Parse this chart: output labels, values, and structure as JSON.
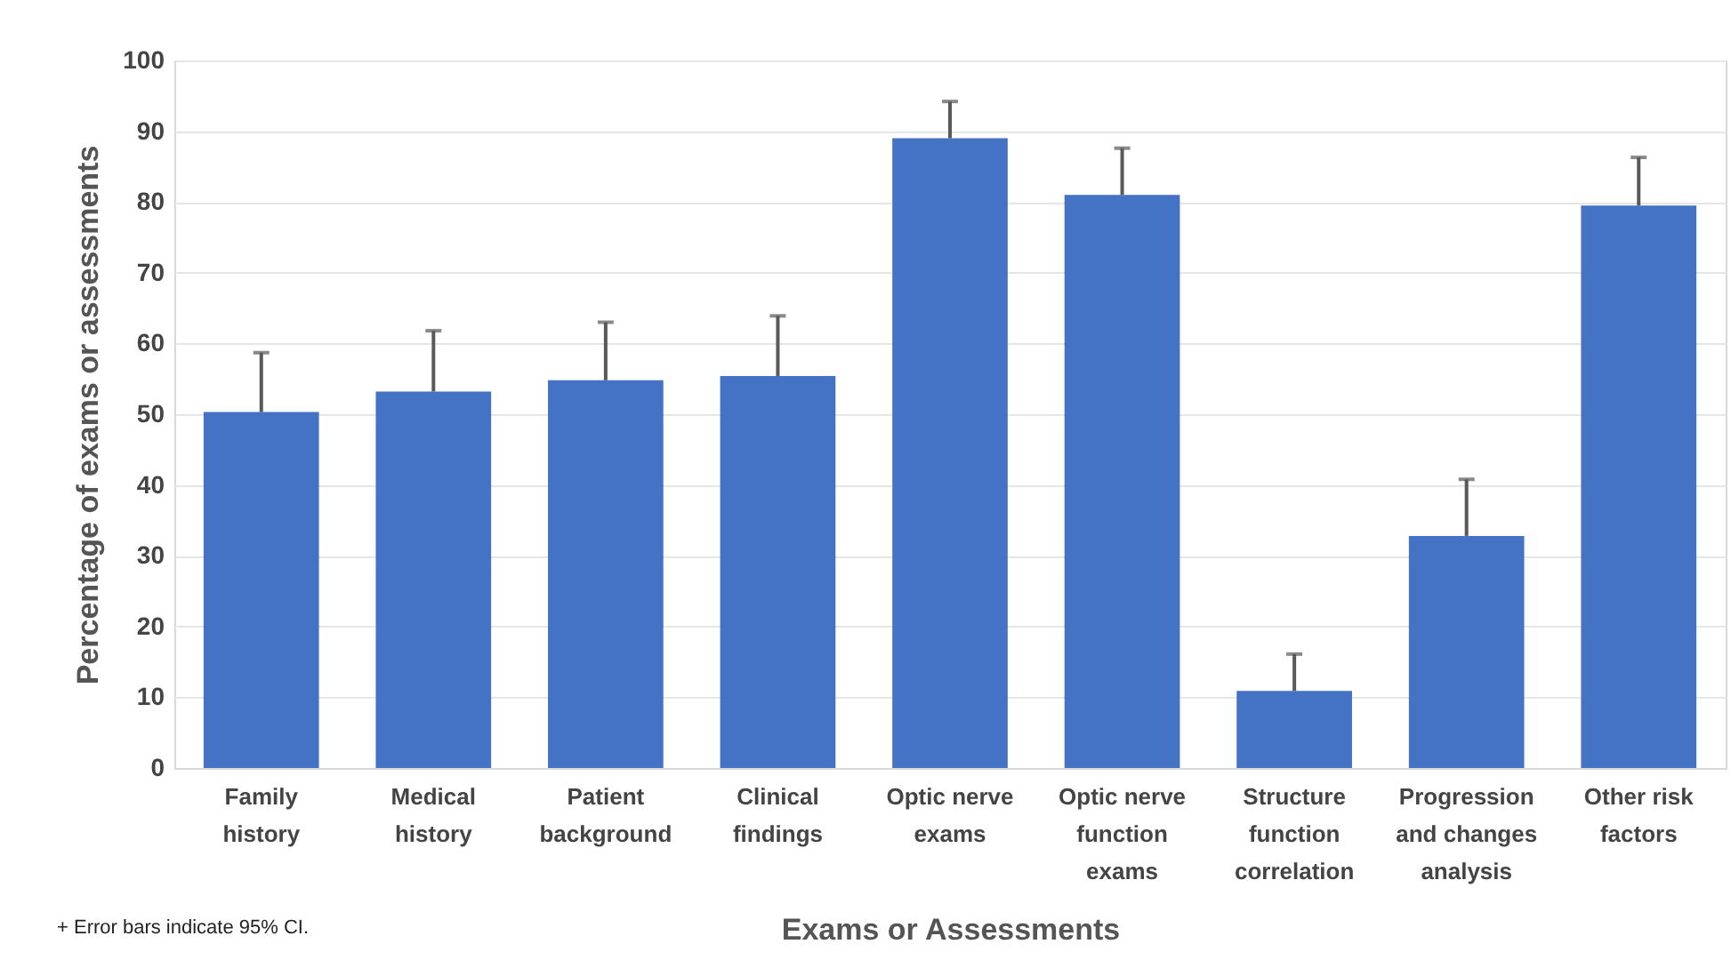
{
  "chart_data": {
    "type": "bar",
    "xlabel": "Exams or Assessments",
    "ylabel": "Percentage of exams or assessments",
    "categories": [
      "Family history",
      "Medical history",
      "Patient background",
      "Clinical findings",
      "Optic nerve exams",
      "Optic nerve function exams",
      "Structure function correlation",
      "Progression and changes analysis",
      "Other risk factors"
    ],
    "values": [
      50.3,
      53.2,
      54.8,
      55.4,
      89.0,
      81.0,
      10.9,
      32.8,
      79.5
    ],
    "errors": [
      [
        50.3,
        58.7
      ],
      [
        53.2,
        61.8
      ],
      [
        54.8,
        63.0
      ],
      [
        55.4,
        63.9
      ],
      [
        89.0,
        94.2
      ],
      [
        81.0,
        87.6
      ],
      [
        10.9,
        16.1
      ],
      [
        32.8,
        40.8
      ],
      [
        79.5,
        86.3
      ]
    ],
    "color": "#4472c4",
    "ylim": [
      0,
      100
    ],
    "yticks": [
      0,
      10,
      20,
      30,
      40,
      50,
      60,
      70,
      80,
      90,
      100
    ],
    "grid": "y",
    "annotations": [
      "+ Error bars indicate 95% CI."
    ]
  }
}
